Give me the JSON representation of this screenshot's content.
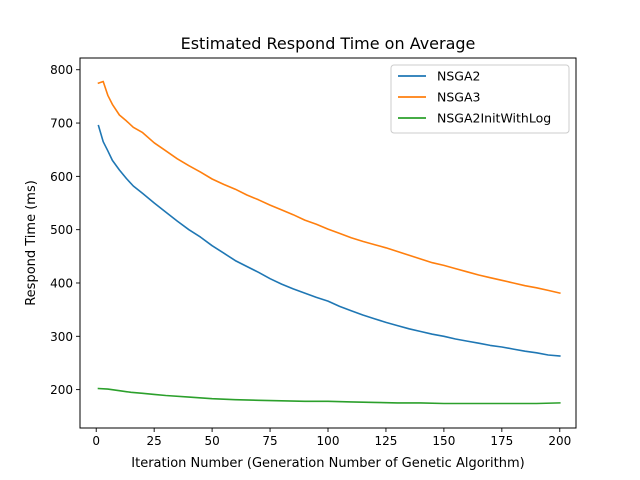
{
  "chart_data": {
    "type": "line",
    "title": "Estimated Respond Time on Average",
    "xlabel": "Iteration Number (Generation Number of Genetic Algorithm)",
    "ylabel": "Respond Time (ms)",
    "xlim": [
      -7,
      207
    ],
    "ylim": [
      128,
      822
    ],
    "xticks": [
      0,
      25,
      50,
      75,
      100,
      125,
      150,
      175,
      200
    ],
    "yticks": [
      200,
      300,
      400,
      500,
      600,
      700,
      800
    ],
    "grid": false,
    "legend_position": "top-right",
    "series": [
      {
        "name": "NSGA2",
        "color": "#1f77b4",
        "x": [
          1,
          3,
          5,
          7,
          10,
          13,
          16,
          20,
          25,
          30,
          35,
          40,
          45,
          50,
          55,
          60,
          65,
          70,
          75,
          80,
          85,
          90,
          95,
          100,
          105,
          110,
          115,
          120,
          125,
          130,
          135,
          140,
          145,
          150,
          155,
          160,
          165,
          170,
          175,
          180,
          185,
          190,
          195,
          200
        ],
        "y": [
          695,
          665,
          648,
          630,
          612,
          596,
          582,
          568,
          550,
          533,
          516,
          500,
          486,
          470,
          456,
          442,
          431,
          420,
          408,
          398,
          389,
          381,
          373,
          366,
          356,
          348,
          340,
          333,
          326,
          320,
          314,
          309,
          304,
          300,
          295,
          291,
          287,
          283,
          280,
          276,
          272,
          269,
          265,
          263
        ]
      },
      {
        "name": "NSGA3",
        "color": "#ff7f0e",
        "x": [
          1,
          3,
          5,
          7,
          10,
          13,
          16,
          20,
          25,
          30,
          35,
          40,
          45,
          50,
          55,
          60,
          65,
          70,
          75,
          80,
          85,
          90,
          95,
          100,
          105,
          110,
          115,
          120,
          125,
          130,
          135,
          140,
          145,
          150,
          155,
          160,
          165,
          170,
          175,
          180,
          185,
          190,
          195,
          200
        ],
        "y": [
          775,
          778,
          752,
          735,
          715,
          704,
          692,
          682,
          663,
          648,
          633,
          620,
          608,
          595,
          585,
          576,
          565,
          556,
          546,
          537,
          528,
          518,
          510,
          501,
          493,
          485,
          478,
          472,
          466,
          459,
          452,
          445,
          438,
          433,
          427,
          421,
          415,
          410,
          405,
          400,
          395,
          391,
          386,
          381
        ]
      },
      {
        "name": "NSGA2InitWithLog",
        "color": "#2ca02c",
        "x": [
          1,
          5,
          10,
          15,
          20,
          25,
          30,
          40,
          50,
          60,
          70,
          80,
          90,
          100,
          110,
          120,
          130,
          140,
          150,
          160,
          170,
          180,
          190,
          200
        ],
        "y": [
          202,
          201,
          198,
          195,
          193,
          191,
          189,
          186,
          183,
          181,
          180,
          179,
          178,
          178,
          177,
          176,
          175,
          175,
          174,
          174,
          174,
          174,
          174,
          175
        ]
      }
    ]
  }
}
